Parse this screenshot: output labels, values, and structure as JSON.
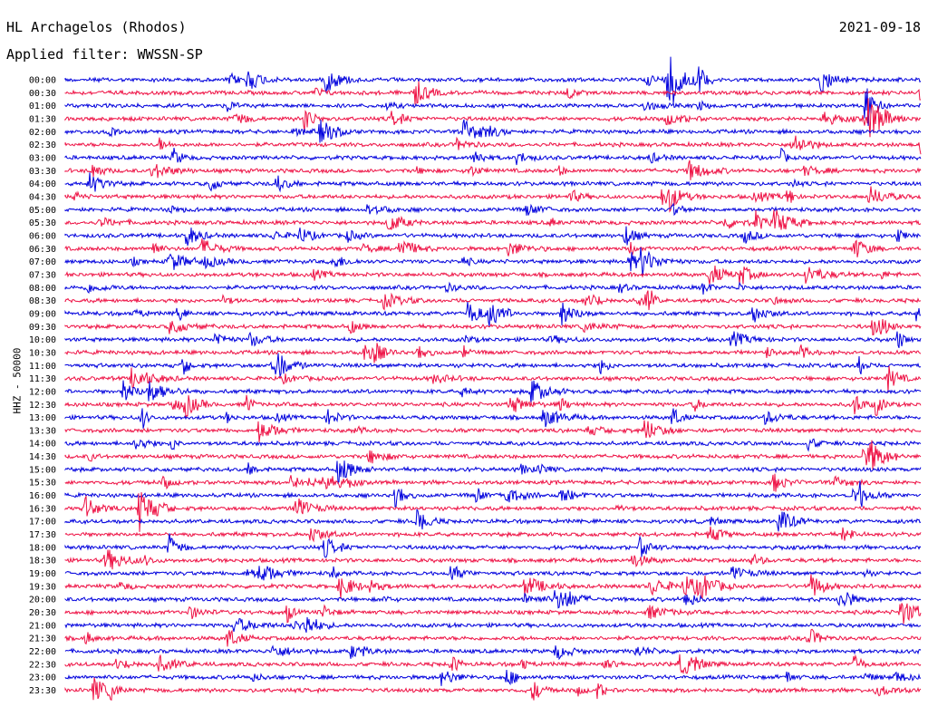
{
  "header": {
    "station": "HL Archagelos (Rhodos)",
    "date": "2021-09-18",
    "filter": "Applied filter: WWSSN-SP"
  },
  "chart_data": {
    "type": "seismogram_helicorder",
    "ylabel": "HHZ - 50000",
    "colors": [
      "#0000dd",
      "#ee1144"
    ],
    "rows": [
      "00:00",
      "00:30",
      "01:00",
      "01:30",
      "02:00",
      "02:30",
      "03:00",
      "03:30",
      "04:00",
      "04:30",
      "05:00",
      "05:30",
      "06:00",
      "06:30",
      "07:00",
      "07:30",
      "08:00",
      "08:30",
      "09:00",
      "09:30",
      "10:00",
      "10:30",
      "11:00",
      "11:30",
      "12:00",
      "12:30",
      "13:00",
      "13:30",
      "14:00",
      "14:30",
      "15:00",
      "15:30",
      "16:00",
      "16:30",
      "17:00",
      "17:30",
      "18:00",
      "18:30",
      "19:00",
      "19:30",
      "20:00",
      "20:30",
      "21:00",
      "21:30",
      "22:00",
      "22:30",
      "23:00",
      "23:30"
    ]
  }
}
